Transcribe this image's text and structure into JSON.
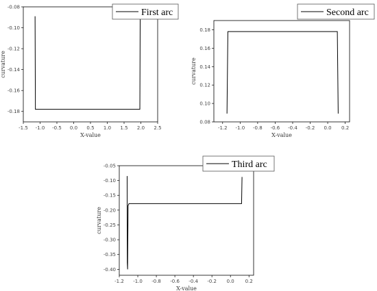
{
  "chart_data": [
    {
      "type": "line",
      "legend": "First arc",
      "xlabel": "X-value",
      "ylabel": "curvature",
      "xlim": [
        -1.5,
        2.5
      ],
      "ylim": [
        -0.19,
        -0.08
      ],
      "xticks": [
        -1.5,
        -1.0,
        -0.5,
        0.0,
        0.5,
        1.0,
        1.5,
        2.0,
        2.5
      ],
      "yticks": [
        -0.18,
        -0.16,
        -0.14,
        -0.12,
        -0.1,
        -0.08
      ],
      "xtick_labels": [
        "-1.5",
        "-1.0",
        "-0.5",
        "0.0",
        "0.5",
        "1.0",
        "1.5",
        "2.0",
        "2.5"
      ],
      "ytick_labels": [
        "-0.18",
        "-0.16",
        "-0.14",
        "-0.12",
        "-0.10",
        "-0.08"
      ],
      "grid": false,
      "legend_position": "top-right",
      "series": [
        {
          "x": [
            -1.15,
            -1.14,
            1.97,
            1.98
          ],
          "y": [
            -0.089,
            -0.178,
            -0.178,
            -0.089
          ]
        }
      ]
    },
    {
      "type": "line",
      "legend": "Second arc",
      "xlabel": "X-value",
      "ylabel": "curvature",
      "xlim": [
        -1.3,
        0.25
      ],
      "ylim": [
        0.08,
        0.19
      ],
      "xticks": [
        -1.2,
        -1.0,
        -0.8,
        -0.6,
        -0.4,
        -0.2,
        0.0,
        0.2
      ],
      "yticks": [
        0.08,
        0.1,
        0.12,
        0.14,
        0.16,
        0.18
      ],
      "xtick_labels": [
        "-1.2",
        "-1.0",
        "-0.8",
        "-0.6",
        "-0.4",
        "-0.2",
        "0.0",
        "0.2"
      ],
      "ytick_labels": [
        "0.08",
        "0.10",
        "0.12",
        "0.14",
        "0.16",
        "0.18"
      ],
      "grid": false,
      "legend_position": "top-right",
      "series": [
        {
          "x": [
            -1.15,
            -1.14,
            0.11,
            0.12
          ],
          "y": [
            0.089,
            0.178,
            0.178,
            0.089
          ]
        }
      ]
    },
    {
      "type": "line",
      "legend": "Third arc",
      "xlabel": "X-value",
      "ylabel": "curvature",
      "xlim": [
        -1.2,
        0.25
      ],
      "ylim": [
        -0.42,
        -0.05
      ],
      "xticks": [
        -1.2,
        -1.0,
        -0.8,
        -0.6,
        -0.4,
        -0.2,
        0.0,
        0.2
      ],
      "yticks": [
        -0.4,
        -0.35,
        -0.3,
        -0.25,
        -0.2,
        -0.15,
        -0.1,
        -0.05
      ],
      "xtick_labels": [
        "-1.2",
        "-1.0",
        "-0.8",
        "-0.6",
        "-0.4",
        "-0.2",
        "0.0",
        "0.2"
      ],
      "ytick_labels": [
        "-0.40",
        "-0.35",
        "-0.30",
        "-0.25",
        "-0.20",
        "-0.15",
        "-0.10",
        "-0.05"
      ],
      "grid": false,
      "legend_position": "top-right",
      "series": [
        {
          "x": [
            -1.115,
            -1.113,
            -1.11,
            -1.105,
            -1.095,
            0.12,
            0.125
          ],
          "y": [
            -0.085,
            -0.378,
            -0.4,
            -0.185,
            -0.178,
            -0.178,
            -0.088
          ]
        }
      ]
    }
  ]
}
